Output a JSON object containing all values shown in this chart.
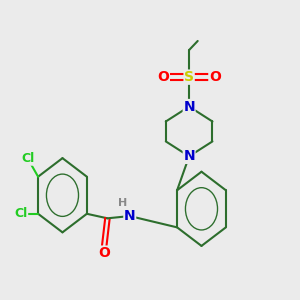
{
  "background_color": "#ebebeb",
  "bond_color": "#2d6e2d",
  "bond_width": 1.5,
  "atom_colors": {
    "Cl": "#22CC22",
    "O": "#FF0000",
    "N": "#0000CC",
    "S": "#CCCC00",
    "H": "#888888",
    "C": "#2d6e2d"
  },
  "font_size_atoms": 10,
  "font_size_small": 8,
  "font_size_h": 8
}
